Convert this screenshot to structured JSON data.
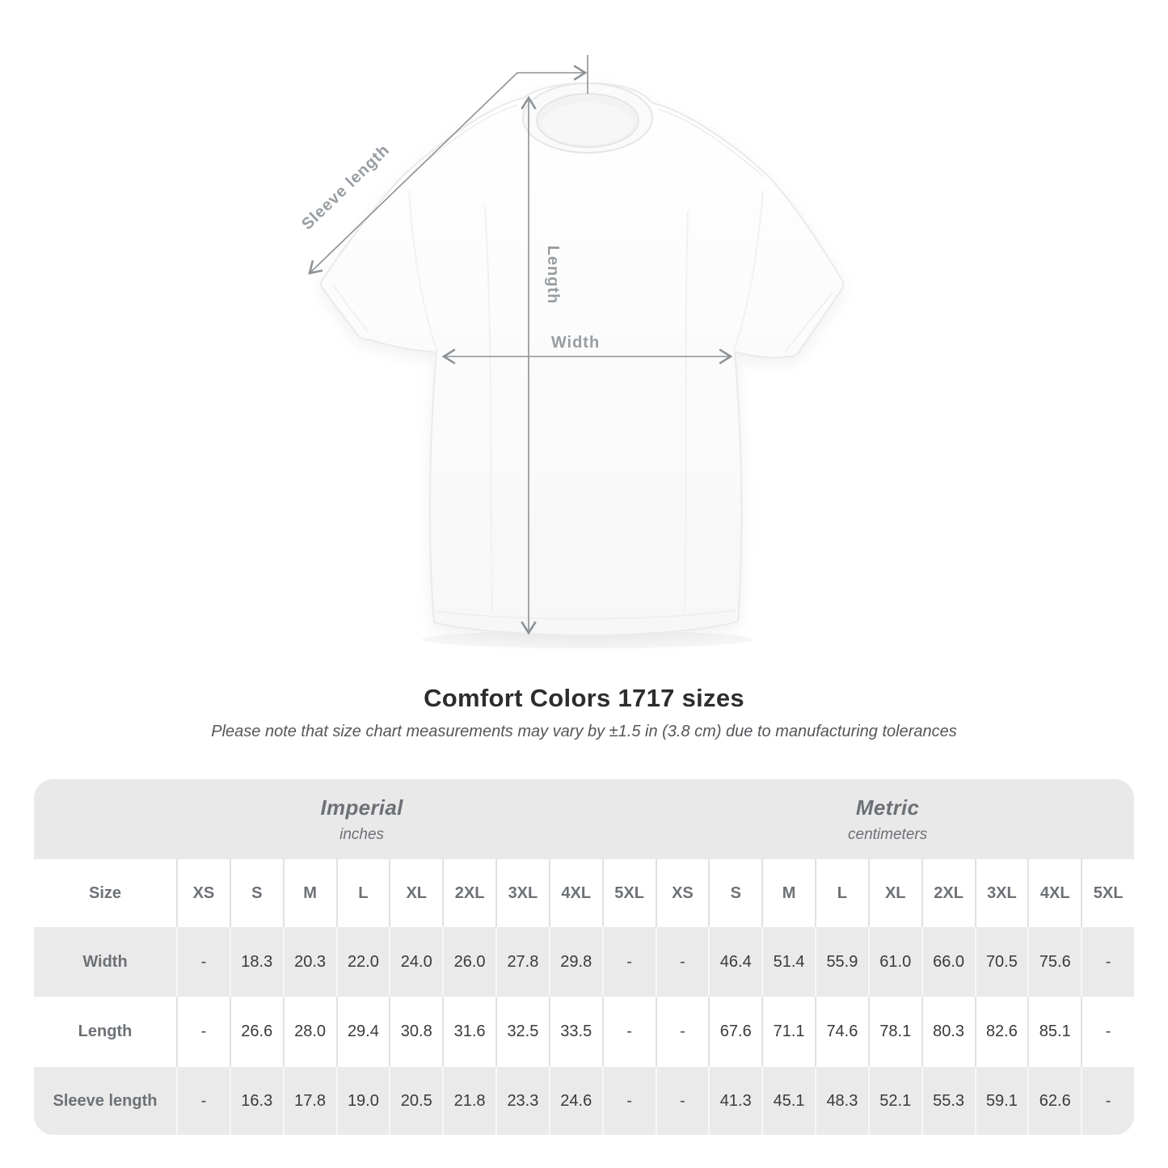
{
  "page": {
    "background": "#ffffff"
  },
  "diagram": {
    "sleeve_label": "Sleeve length",
    "length_label": "Length",
    "width_label": "Width",
    "line_color": "#8d9296",
    "label_color": "#989da1"
  },
  "title": "Comfort Colors 1717 sizes",
  "note": "Please note that size chart measurements may vary by ±1.5 in (3.8 cm) due to manufacturing tolerances",
  "chart_data": {
    "type": "table",
    "title": "Comfort Colors 1717 sizes",
    "sections": [
      {
        "name": "Imperial",
        "unit": "inches"
      },
      {
        "name": "Metric",
        "unit": "centimeters"
      }
    ],
    "size_col_header": "Size",
    "sizes": [
      "XS",
      "S",
      "M",
      "L",
      "XL",
      "2XL",
      "3XL",
      "4XL",
      "5XL"
    ],
    "rows": [
      {
        "label": "Width",
        "imperial": [
          "-",
          "18.3",
          "20.3",
          "22.0",
          "24.0",
          "26.0",
          "27.8",
          "29.8",
          "-"
        ],
        "metric": [
          "-",
          "46.4",
          "51.4",
          "55.9",
          "61.0",
          "66.0",
          "70.5",
          "75.6",
          "-"
        ]
      },
      {
        "label": "Length",
        "imperial": [
          "-",
          "26.6",
          "28.0",
          "29.4",
          "30.8",
          "31.6",
          "32.5",
          "33.5",
          "-"
        ],
        "metric": [
          "-",
          "67.6",
          "71.1",
          "74.6",
          "78.1",
          "80.3",
          "82.6",
          "85.1",
          "-"
        ]
      },
      {
        "label": "Sleeve length",
        "imperial": [
          "-",
          "16.3",
          "17.8",
          "19.0",
          "20.5",
          "21.8",
          "23.3",
          "24.6",
          "-"
        ],
        "metric": [
          "-",
          "41.3",
          "45.1",
          "48.3",
          "52.1",
          "55.3",
          "59.1",
          "62.6",
          "-"
        ]
      }
    ],
    "colors": {
      "band_bg": "#e9e9e9",
      "row_alt_bg": "#eaeaea",
      "header_text": "#6d7176",
      "value_text": "#3a3a3a"
    }
  }
}
